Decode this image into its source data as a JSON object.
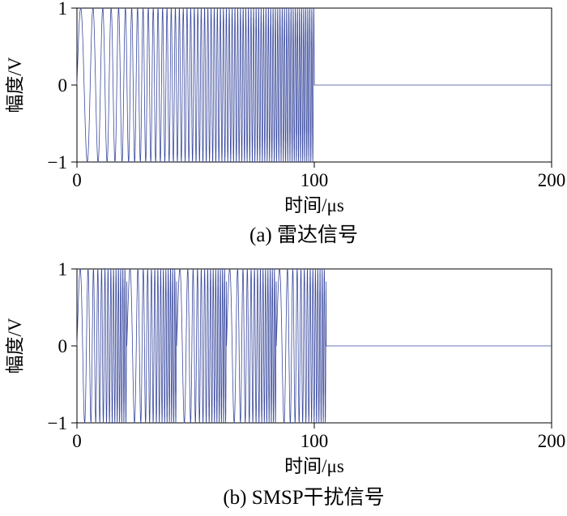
{
  "page": {
    "background": "#ffffff"
  },
  "chart_data": [
    {
      "type": "line",
      "caption": "(a) 雷达信号",
      "xlabel": "时间/μs",
      "ylabel": "幅度/V",
      "xlim": [
        0,
        200
      ],
      "ylim": [
        -1,
        1
      ],
      "xtick_labels": [
        "0",
        "100",
        "200"
      ],
      "ytick_labels": [
        "1",
        "0",
        "−1"
      ],
      "grid": false,
      "legend": "none",
      "line_color": "#3a4a9e",
      "frame_color": "#000000",
      "signal": {
        "kind": "lfm",
        "description": "Linear-FM chirp radar pulse: amplitude ±1 V from 0 to 100 μs, frequency sweeping low to high, zero level from 100 to 200 μs",
        "amplitude": 1,
        "t0": 0,
        "t1": 100,
        "f0": 0.15,
        "f1": 1.2
      }
    },
    {
      "type": "line",
      "caption": "(b) SMSP干扰信号",
      "xlabel": "时间/μs",
      "ylabel": "幅度/V",
      "xlim": [
        0,
        200
      ],
      "ylim": [
        -1,
        1
      ],
      "xtick_labels": [
        "0",
        "100",
        "200"
      ],
      "ytick_labels": [
        "1",
        "0",
        "−1"
      ],
      "grid": false,
      "legend": "none",
      "line_color": "#3a4a9e",
      "frame_color": "#000000",
      "signal": {
        "kind": "smsp",
        "description": "SMSP jamming signal: 5 time-compressed chirp sub-pulses of 21 μs each (0 to 105 μs), amplitude ±1 V, zero level afterwards",
        "amplitude": 1,
        "sub_duration": 21,
        "repeats": 5,
        "f0": 0.15,
        "f1": 1.2
      }
    }
  ]
}
